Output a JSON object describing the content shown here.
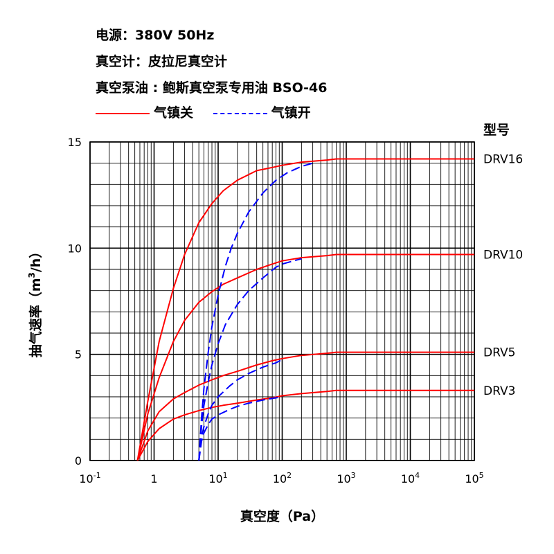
{
  "header": {
    "power": "电源：380V 50Hz",
    "gauge": "真空计：皮拉尼真空计",
    "oil": "真空泵油 : 鲍斯真空泵专用油 BSO-46"
  },
  "chart_data": {
    "type": "line",
    "xlabel": "真空度（Pa）",
    "ylabel": "抽气速率（m3/h）",
    "xscale": "log",
    "xlim": [
      0.1,
      100000
    ],
    "ylim": [
      0,
      15
    ],
    "x_ticks": [
      {
        "base": "10",
        "exp": "-1",
        "value": 0.1
      },
      {
        "base": "1",
        "exp": "",
        "value": 1
      },
      {
        "base": "10",
        "exp": "1",
        "value": 10
      },
      {
        "base": "10",
        "exp": "2",
        "value": 100
      },
      {
        "base": "10",
        "exp": "3",
        "value": 1000
      },
      {
        "base": "10",
        "exp": "4",
        "value": 10000
      },
      {
        "base": "10",
        "exp": "5",
        "value": 100000
      }
    ],
    "y_ticks": [
      "0",
      "5",
      "10",
      "15"
    ],
    "grid": true,
    "legend": {
      "position": "top",
      "entries": [
        {
          "label": "气镇关",
          "color": "#ff0000",
          "dash": "solid"
        },
        {
          "label": "气镇开",
          "color": "#0000ff",
          "dash": "dashed"
        }
      ]
    },
    "models_title": "型号",
    "series": [
      {
        "name": "DRV16",
        "ballast": "off",
        "color": "#ff0000",
        "x": [
          0.55,
          0.8,
          1.2,
          2,
          3,
          5,
          8,
          12,
          20,
          40,
          70,
          100,
          200,
          500,
          700,
          100000
        ],
        "y": [
          0,
          2.8,
          5.6,
          8.1,
          9.7,
          11.2,
          12.1,
          12.7,
          13.2,
          13.65,
          13.8,
          13.9,
          14.05,
          14.15,
          14.2,
          14.2
        ]
      },
      {
        "name": "DRV10",
        "ballast": "off",
        "color": "#ff0000",
        "x": [
          0.55,
          0.8,
          1.2,
          2,
          3,
          5,
          8,
          12,
          20,
          40,
          70,
          100,
          200,
          500,
          700,
          100000
        ],
        "y": [
          0,
          2.2,
          3.9,
          5.6,
          6.6,
          7.45,
          7.95,
          8.3,
          8.6,
          9.0,
          9.25,
          9.4,
          9.55,
          9.65,
          9.7,
          9.7
        ]
      },
      {
        "name": "DRV5",
        "ballast": "off",
        "color": "#ff0000",
        "x": [
          0.55,
          0.8,
          1.2,
          2,
          3,
          5,
          8,
          12,
          20,
          40,
          70,
          100,
          200,
          500,
          700,
          100000
        ],
        "y": [
          0,
          1.4,
          2.3,
          2.9,
          3.2,
          3.55,
          3.8,
          4.0,
          4.2,
          4.5,
          4.7,
          4.8,
          4.95,
          5.05,
          5.1,
          5.1
        ]
      },
      {
        "name": "DRV3",
        "ballast": "off",
        "color": "#ff0000",
        "x": [
          0.55,
          0.8,
          1.2,
          2,
          3,
          5,
          8,
          12,
          20,
          40,
          70,
          100,
          200,
          500,
          700,
          100000
        ],
        "y": [
          0,
          0.9,
          1.5,
          1.95,
          2.15,
          2.35,
          2.5,
          2.6,
          2.7,
          2.85,
          2.95,
          3.05,
          3.15,
          3.25,
          3.3,
          3.3
        ]
      },
      {
        "name": "DRV16",
        "ballast": "on",
        "color": "#0000ff",
        "x": [
          5,
          5.5,
          6,
          7,
          8,
          10,
          13,
          16,
          20,
          30,
          50,
          80,
          120,
          200,
          300
        ],
        "y": [
          0,
          2.0,
          3.4,
          5.1,
          6.3,
          7.8,
          9.15,
          10.0,
          10.7,
          11.7,
          12.6,
          13.2,
          13.55,
          13.85,
          14.0
        ]
      },
      {
        "name": "DRV10",
        "ballast": "on",
        "color": "#0000ff",
        "x": [
          5,
          5.5,
          6,
          7,
          8,
          10,
          13,
          20,
          30,
          50,
          80,
          100,
          150,
          200
        ],
        "y": [
          0,
          1.6,
          2.6,
          3.7,
          4.5,
          5.5,
          6.4,
          7.35,
          8.0,
          8.6,
          9.1,
          9.25,
          9.4,
          9.5
        ]
      },
      {
        "name": "DRV5",
        "ballast": "on",
        "color": "#0000ff",
        "x": [
          5,
          5.5,
          6,
          7,
          8,
          10,
          15,
          20,
          30,
          50,
          80,
          100
        ],
        "y": [
          0,
          1.1,
          1.6,
          2.2,
          2.6,
          3.0,
          3.5,
          3.8,
          4.1,
          4.4,
          4.6,
          4.75
        ]
      },
      {
        "name": "DRV3",
        "ballast": "on",
        "color": "#0000ff",
        "x": [
          5,
          5.5,
          6,
          7,
          8,
          10,
          15,
          20,
          30,
          50,
          80,
          100
        ],
        "y": [
          0,
          0.9,
          1.3,
          1.7,
          1.95,
          2.15,
          2.4,
          2.55,
          2.7,
          2.85,
          2.95,
          3.0
        ]
      }
    ]
  }
}
